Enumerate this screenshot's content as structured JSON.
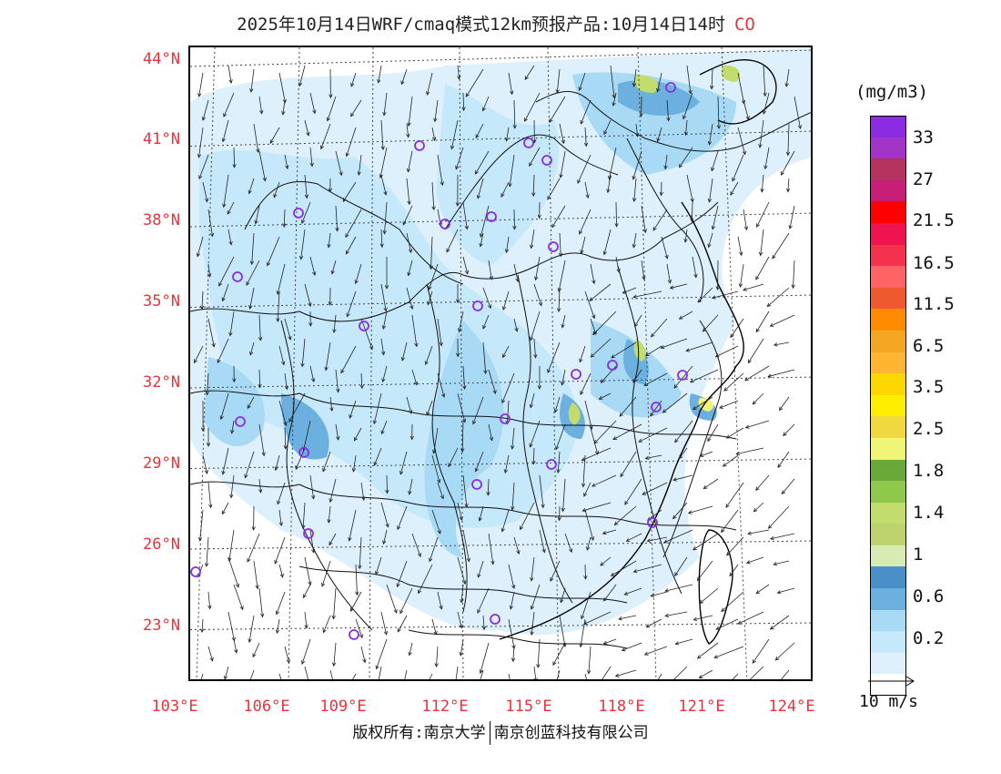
{
  "title": {
    "text": "2025年10月14日WRF/cmaq模式12km预报产品:10月14日14时",
    "species": "CO"
  },
  "latitude_labels": [
    "44°N",
    "41°N",
    "38°N",
    "35°N",
    "32°N",
    "29°N",
    "26°N",
    "23°N"
  ],
  "longitude_labels": [
    "103°E",
    "106°E",
    "109°E",
    "112°E",
    "115°E",
    "118°E",
    "121°E",
    "124°E"
  ],
  "colorbar": {
    "unit": "(mg/m3)",
    "labels": [
      "33",
      "27",
      "21.5",
      "16.5",
      "11.5",
      "6.5",
      "3.5",
      "2.5",
      "1.8",
      "1.4",
      "1",
      "0.6",
      "0.2"
    ],
    "colors": [
      "#8b2be2",
      "#a235c8",
      "#b5345f",
      "#c81e78",
      "#ff0000",
      "#f0144e",
      "#f5324e",
      "#ff6464",
      "#ee5a2d",
      "#ff8c00",
      "#f5a623",
      "#ffb432",
      "#ffd700",
      "#ffee00",
      "#f0d840",
      "#f0f578",
      "#6aa83a",
      "#8fc84b",
      "#c3dc6e",
      "#bed26e",
      "#d8ebb4",
      "#4a8fc8",
      "#6cb0e0",
      "#a8daf6",
      "#c6e8fb",
      "#ddf0fc",
      "#ffffff"
    ]
  },
  "reference_vector": {
    "label": "10  m/s"
  },
  "footer": {
    "left": "版权所有:南京大学",
    "right": "南京创蓝科技有限公司"
  }
}
